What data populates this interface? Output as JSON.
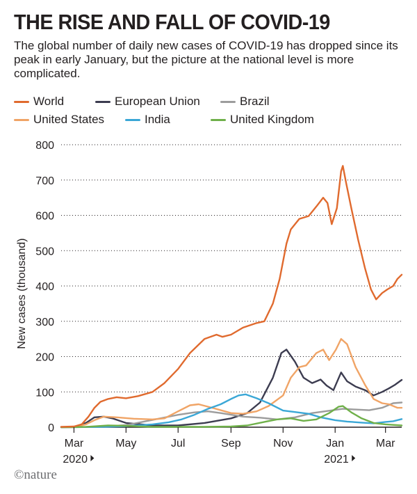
{
  "header": {
    "title": "THE RISE AND FALL OF COVID-19",
    "subtitle": "The global number of daily new cases of COVID-19 has dropped since its peak in early January, but the picture at the national level is more complicated."
  },
  "footer": {
    "brand": "©nature"
  },
  "chart_data": {
    "type": "line",
    "ylabel": "New cases (thousand)",
    "ylim": [
      0,
      800
    ],
    "yticks": [
      0,
      100,
      200,
      300,
      400,
      500,
      600,
      700,
      800
    ],
    "grid": "horizontal dotted",
    "legend": "top",
    "xlim": [
      "2020-02-15",
      "2021-03-20"
    ],
    "xticks": [
      {
        "label": "Mar",
        "date": "2020-03-01",
        "year": "2020"
      },
      {
        "label": "May",
        "date": "2020-05-01",
        "year": ""
      },
      {
        "label": "Jul",
        "date": "2020-07-01",
        "year": ""
      },
      {
        "label": "Sep",
        "date": "2020-09-01",
        "year": ""
      },
      {
        "label": "Nov",
        "date": "2020-11-01",
        "year": ""
      },
      {
        "label": "Jan",
        "date": "2021-01-01",
        "year": "2021"
      },
      {
        "label": "Mar",
        "date": "2021-03-01",
        "year": ""
      }
    ],
    "series": [
      {
        "name": "World",
        "color": "#e06a2e",
        "points": [
          [
            "2020-02-15",
            1
          ],
          [
            "2020-03-01",
            2
          ],
          [
            "2020-03-10",
            8
          ],
          [
            "2020-03-18",
            30
          ],
          [
            "2020-03-25",
            55
          ],
          [
            "2020-04-01",
            72
          ],
          [
            "2020-04-10",
            80
          ],
          [
            "2020-04-20",
            85
          ],
          [
            "2020-05-01",
            82
          ],
          [
            "2020-05-15",
            88
          ],
          [
            "2020-06-01",
            100
          ],
          [
            "2020-06-15",
            125
          ],
          [
            "2020-07-01",
            165
          ],
          [
            "2020-07-15",
            210
          ],
          [
            "2020-08-01",
            250
          ],
          [
            "2020-08-15",
            262
          ],
          [
            "2020-08-22",
            256
          ],
          [
            "2020-09-01",
            262
          ],
          [
            "2020-09-15",
            282
          ],
          [
            "2020-10-01",
            295
          ],
          [
            "2020-10-10",
            300
          ],
          [
            "2020-10-20",
            350
          ],
          [
            "2020-10-28",
            420
          ],
          [
            "2020-11-05",
            520
          ],
          [
            "2020-11-10",
            560
          ],
          [
            "2020-11-20",
            590
          ],
          [
            "2020-12-01",
            598
          ],
          [
            "2020-12-10",
            625
          ],
          [
            "2020-12-18",
            650
          ],
          [
            "2020-12-23",
            635
          ],
          [
            "2020-12-28",
            575
          ],
          [
            "2021-01-03",
            620
          ],
          [
            "2021-01-08",
            725
          ],
          [
            "2021-01-10",
            740
          ],
          [
            "2021-01-14",
            690
          ],
          [
            "2021-01-20",
            620
          ],
          [
            "2021-01-28",
            530
          ],
          [
            "2021-02-05",
            450
          ],
          [
            "2021-02-12",
            390
          ],
          [
            "2021-02-18",
            362
          ],
          [
            "2021-02-25",
            380
          ],
          [
            "2021-03-03",
            390
          ],
          [
            "2021-03-10",
            400
          ],
          [
            "2021-03-15",
            420
          ],
          [
            "2021-03-20",
            432
          ]
        ]
      },
      {
        "name": "European Union",
        "color": "#3c3c50",
        "points": [
          [
            "2020-02-15",
            0
          ],
          [
            "2020-03-01",
            1
          ],
          [
            "2020-03-15",
            12
          ],
          [
            "2020-03-25",
            28
          ],
          [
            "2020-04-05",
            30
          ],
          [
            "2020-04-15",
            25
          ],
          [
            "2020-05-01",
            12
          ],
          [
            "2020-06-01",
            5
          ],
          [
            "2020-07-01",
            5
          ],
          [
            "2020-08-01",
            12
          ],
          [
            "2020-09-01",
            25
          ],
          [
            "2020-09-20",
            40
          ],
          [
            "2020-10-05",
            70
          ],
          [
            "2020-10-20",
            140
          ],
          [
            "2020-10-30",
            210
          ],
          [
            "2020-11-05",
            220
          ],
          [
            "2020-11-15",
            185
          ],
          [
            "2020-11-25",
            140
          ],
          [
            "2020-12-05",
            125
          ],
          [
            "2020-12-15",
            135
          ],
          [
            "2020-12-22",
            118
          ],
          [
            "2020-12-30",
            105
          ],
          [
            "2021-01-08",
            155
          ],
          [
            "2021-01-15",
            130
          ],
          [
            "2021-01-25",
            115
          ],
          [
            "2021-02-05",
            105
          ],
          [
            "2021-02-15",
            90
          ],
          [
            "2021-02-25",
            100
          ],
          [
            "2021-03-05",
            110
          ],
          [
            "2021-03-12",
            120
          ],
          [
            "2021-03-20",
            134
          ]
        ]
      },
      {
        "name": "Brazil",
        "color": "#9c9c9c",
        "points": [
          [
            "2020-02-15",
            0
          ],
          [
            "2020-03-01",
            0
          ],
          [
            "2020-04-01",
            1
          ],
          [
            "2020-05-01",
            6
          ],
          [
            "2020-05-20",
            15
          ],
          [
            "2020-06-10",
            25
          ],
          [
            "2020-07-01",
            35
          ],
          [
            "2020-07-20",
            42
          ],
          [
            "2020-08-05",
            45
          ],
          [
            "2020-08-20",
            40
          ],
          [
            "2020-09-15",
            30
          ],
          [
            "2020-10-05",
            27
          ],
          [
            "2020-10-25",
            22
          ],
          [
            "2020-11-15",
            28
          ],
          [
            "2020-12-05",
            40
          ],
          [
            "2020-12-20",
            45
          ],
          [
            "2021-01-10",
            52
          ],
          [
            "2021-01-25",
            50
          ],
          [
            "2021-02-10",
            48
          ],
          [
            "2021-02-25",
            55
          ],
          [
            "2021-03-10",
            68
          ],
          [
            "2021-03-20",
            70
          ]
        ]
      },
      {
        "name": "United States",
        "color": "#f0a466",
        "points": [
          [
            "2020-02-15",
            0
          ],
          [
            "2020-03-01",
            0
          ],
          [
            "2020-03-15",
            8
          ],
          [
            "2020-03-25",
            20
          ],
          [
            "2020-04-05",
            30
          ],
          [
            "2020-04-20",
            28
          ],
          [
            "2020-05-10",
            24
          ],
          [
            "2020-06-01",
            22
          ],
          [
            "2020-06-15",
            25
          ],
          [
            "2020-07-01",
            45
          ],
          [
            "2020-07-15",
            62
          ],
          [
            "2020-07-25",
            65
          ],
          [
            "2020-08-10",
            55
          ],
          [
            "2020-09-01",
            40
          ],
          [
            "2020-09-15",
            38
          ],
          [
            "2020-10-01",
            45
          ],
          [
            "2020-10-15",
            60
          ],
          [
            "2020-11-01",
            90
          ],
          [
            "2020-11-10",
            140
          ],
          [
            "2020-11-20",
            170
          ],
          [
            "2020-11-28",
            175
          ],
          [
            "2020-12-10",
            210
          ],
          [
            "2020-12-18",
            220
          ],
          [
            "2020-12-25",
            190
          ],
          [
            "2021-01-02",
            220
          ],
          [
            "2021-01-08",
            250
          ],
          [
            "2021-01-15",
            235
          ],
          [
            "2021-01-25",
            170
          ],
          [
            "2021-02-05",
            120
          ],
          [
            "2021-02-15",
            80
          ],
          [
            "2021-02-25",
            68
          ],
          [
            "2021-03-05",
            65
          ],
          [
            "2021-03-15",
            55
          ],
          [
            "2021-03-20",
            55
          ]
        ]
      },
      {
        "name": "India",
        "color": "#3aa7d6",
        "points": [
          [
            "2020-02-15",
            0
          ],
          [
            "2020-04-01",
            1
          ],
          [
            "2020-05-01",
            3
          ],
          [
            "2020-06-01",
            8
          ],
          [
            "2020-06-20",
            14
          ],
          [
            "2020-07-05",
            22
          ],
          [
            "2020-07-20",
            35
          ],
          [
            "2020-08-05",
            52
          ],
          [
            "2020-08-20",
            65
          ],
          [
            "2020-09-01",
            80
          ],
          [
            "2020-09-10",
            90
          ],
          [
            "2020-09-18",
            93
          ],
          [
            "2020-10-01",
            82
          ],
          [
            "2020-10-15",
            68
          ],
          [
            "2020-11-01",
            47
          ],
          [
            "2020-11-15",
            43
          ],
          [
            "2020-12-01",
            38
          ],
          [
            "2020-12-15",
            28
          ],
          [
            "2021-01-01",
            20
          ],
          [
            "2021-01-15",
            16
          ],
          [
            "2021-02-01",
            13
          ],
          [
            "2021-02-15",
            11
          ],
          [
            "2021-03-01",
            15
          ],
          [
            "2021-03-10",
            17
          ],
          [
            "2021-03-20",
            23
          ]
        ]
      },
      {
        "name": "United Kingdom",
        "color": "#6fb04a",
        "points": [
          [
            "2020-02-15",
            0
          ],
          [
            "2020-03-15",
            1
          ],
          [
            "2020-04-10",
            5
          ],
          [
            "2020-05-01",
            4
          ],
          [
            "2020-06-01",
            1
          ],
          [
            "2020-08-01",
            1
          ],
          [
            "2020-09-01",
            2
          ],
          [
            "2020-09-20",
            5
          ],
          [
            "2020-10-10",
            15
          ],
          [
            "2020-10-25",
            22
          ],
          [
            "2020-11-10",
            25
          ],
          [
            "2020-11-25",
            18
          ],
          [
            "2020-12-10",
            22
          ],
          [
            "2020-12-25",
            40
          ],
          [
            "2021-01-05",
            58
          ],
          [
            "2021-01-10",
            60
          ],
          [
            "2021-01-20",
            42
          ],
          [
            "2021-02-01",
            25
          ],
          [
            "2021-02-15",
            12
          ],
          [
            "2021-03-01",
            8
          ],
          [
            "2021-03-20",
            5
          ]
        ]
      }
    ]
  }
}
